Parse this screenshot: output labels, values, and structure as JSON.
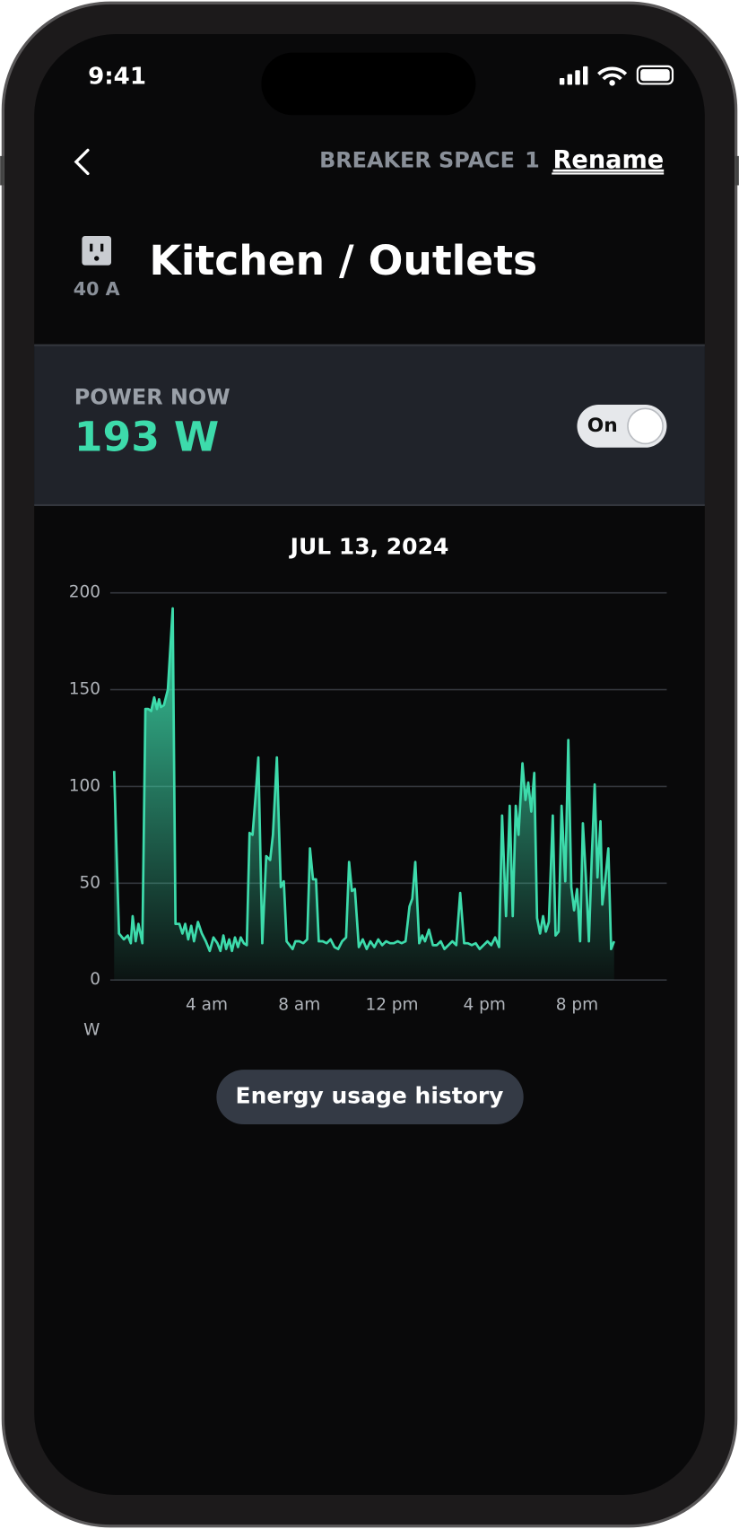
{
  "status": {
    "time": "9:41"
  },
  "header": {
    "breaker": "BREAKER SPACE",
    "space": "1",
    "rename": "Rename"
  },
  "circuit": {
    "amperage": "40 A",
    "name": "Kitchen / Outlets"
  },
  "power": {
    "label": "POWER NOW",
    "value": "193 W",
    "toggle": "On"
  },
  "chart_data": {
    "type": "area",
    "title": "JUL 13, 2024",
    "y_label": "W",
    "color": "#3ddbab",
    "grid": true,
    "xlim": [
      0,
      24
    ],
    "xticks": [
      {
        "value": 4,
        "label": "4 am"
      },
      {
        "value": 8,
        "label": "8 am"
      },
      {
        "value": 12,
        "label": "12 pm"
      },
      {
        "value": 16,
        "label": "4 pm"
      },
      {
        "value": 20,
        "label": "8 pm"
      }
    ],
    "ylim": [
      0,
      200
    ],
    "yticks": [
      0,
      50,
      100,
      150,
      200
    ],
    "x": [
      0,
      0.21,
      0.42,
      0.59,
      0.72,
      0.8,
      0.93,
      1.05,
      1.22,
      1.35,
      1.47,
      1.6,
      1.73,
      1.85,
      1.94,
      2.02,
      2.15,
      2.32,
      2.53,
      2.65,
      2.82,
      2.95,
      3.07,
      3.2,
      3.33,
      3.45,
      3.62,
      3.79,
      3.96,
      4.13,
      4.29,
      4.46,
      4.59,
      4.72,
      4.84,
      4.97,
      5.09,
      5.22,
      5.35,
      5.47,
      5.6,
      5.73,
      5.85,
      5.98,
      6.11,
      6.23,
      6.4,
      6.57,
      6.74,
      6.86,
      7.03,
      7.2,
      7.33,
      7.45,
      7.58,
      7.71,
      7.83,
      8,
      8.17,
      8.34,
      8.46,
      8.59,
      8.72,
      8.84,
      9.01,
      9.18,
      9.35,
      9.52,
      9.68,
      9.85,
      10.02,
      10.15,
      10.27,
      10.4,
      10.57,
      10.74,
      10.91,
      11.07,
      11.24,
      11.41,
      11.58,
      11.75,
      11.92,
      12.08,
      12.25,
      12.42,
      12.59,
      12.76,
      12.88,
      13.01,
      13.18,
      13.31,
      13.43,
      13.6,
      13.77,
      13.94,
      14.11,
      14.27,
      14.44,
      14.61,
      14.78,
      14.95,
      15.12,
      15.28,
      15.45,
      15.62,
      15.79,
      15.96,
      16.13,
      16.29,
      16.46,
      16.63,
      16.76,
      16.93,
      17.09,
      17.22,
      17.35,
      17.47,
      17.64,
      17.77,
      17.89,
      18.02,
      18.15,
      18.27,
      18.4,
      18.53,
      18.65,
      18.78,
      18.95,
      19.07,
      19.2,
      19.33,
      19.49,
      19.62,
      19.75,
      19.87,
      20,
      20.13,
      20.25,
      20.38,
      20.51,
      20.63,
      20.76,
      20.88,
      21.01,
      21.09,
      21.22,
      21.35,
      21.47,
      21.6
    ],
    "values": [
      108,
      24,
      21,
      23,
      19,
      33,
      20,
      29,
      19,
      140,
      140,
      139,
      146,
      140,
      145,
      141,
      142,
      150,
      192,
      29,
      29,
      24,
      29,
      21,
      28,
      20,
      30,
      24,
      20,
      15,
      22,
      19,
      15,
      23,
      16,
      21,
      15,
      22,
      17,
      22,
      19,
      18,
      76,
      75,
      95,
      115,
      19,
      64,
      62,
      75,
      115,
      48,
      51,
      20,
      18,
      16,
      20,
      20,
      19,
      21,
      68,
      52,
      52,
      20,
      20,
      19,
      21,
      17,
      16,
      20,
      22,
      61,
      46,
      47,
      17,
      21,
      16,
      20,
      17,
      21,
      18,
      20,
      19,
      19,
      20,
      19,
      20,
      38,
      42,
      61,
      19,
      23,
      20,
      26,
      18,
      18,
      20,
      16,
      18,
      20,
      18,
      45,
      19,
      19,
      18,
      19,
      16,
      18,
      20,
      18,
      22,
      17,
      85,
      33,
      90,
      33,
      90,
      75,
      112,
      93,
      102,
      87,
      107,
      32,
      24,
      33,
      25,
      30,
      85,
      23,
      25,
      90,
      51,
      124,
      48,
      36,
      47,
      20,
      81,
      53,
      20,
      62,
      101,
      53,
      82,
      39,
      52,
      68,
      16,
      20
    ]
  },
  "button": {
    "label": "Energy usage history"
  }
}
